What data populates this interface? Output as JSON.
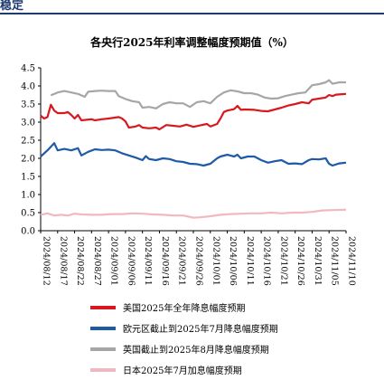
{
  "header": {
    "text": "稳定"
  },
  "chart_data": {
    "type": "line",
    "title": "各央行2025年利率调整幅度预期值（%）",
    "xlabel": "",
    "ylabel": "",
    "ylim": [
      0,
      4.5
    ],
    "yticks": [
      "0.0",
      "0.5",
      "1.0",
      "1.5",
      "2.0",
      "2.5",
      "3.0",
      "3.5",
      "4.0",
      "4.5"
    ],
    "grid": false,
    "legend_position": "bottom",
    "x_start": "2024/08/12",
    "x_end": "2024/11/10",
    "x_ticks": [
      "2024/08/12",
      "2024/08/17",
      "2024/08/22",
      "2024/08/27",
      "2024/09/01",
      "2024/09/06",
      "2024/09/11",
      "2024/09/16",
      "2024/09/21",
      "2024/09/26",
      "2024/10/01",
      "2024/10/06",
      "2024/10/11",
      "2024/10/16",
      "2024/10/21",
      "2024/10/26",
      "2024/10/31",
      "2024/11/05",
      "2024/11/10"
    ],
    "series": [
      {
        "name": "美国2025年全年降息幅度预期",
        "color": "#d7191f",
        "points": [
          [
            "2024/08/12",
            3.18
          ],
          [
            "2024/08/13",
            3.1
          ],
          [
            "2024/08/14",
            3.14
          ],
          [
            "2024/08/15",
            3.48
          ],
          [
            "2024/08/16",
            3.32
          ],
          [
            "2024/08/17",
            3.25
          ],
          [
            "2024/08/19",
            3.25
          ],
          [
            "2024/08/20",
            3.28
          ],
          [
            "2024/08/21",
            3.2
          ],
          [
            "2024/08/22",
            3.1
          ],
          [
            "2024/08/23",
            3.2
          ],
          [
            "2024/08/24",
            3.05
          ],
          [
            "2024/08/27",
            3.08
          ],
          [
            "2024/08/28",
            3.05
          ],
          [
            "2024/08/30",
            3.08
          ],
          [
            "2024/09/01",
            3.1
          ],
          [
            "2024/09/04",
            3.14
          ],
          [
            "2024/09/05",
            3.1
          ],
          [
            "2024/09/06",
            3.02
          ],
          [
            "2024/09/07",
            2.85
          ],
          [
            "2024/09/09",
            2.88
          ],
          [
            "2024/09/10",
            2.92
          ],
          [
            "2024/09/11",
            2.85
          ],
          [
            "2024/09/13",
            2.83
          ],
          [
            "2024/09/15",
            2.85
          ],
          [
            "2024/09/16",
            2.8
          ],
          [
            "2024/09/18",
            2.92
          ],
          [
            "2024/09/20",
            2.9
          ],
          [
            "2024/09/22",
            2.88
          ],
          [
            "2024/09/24",
            2.93
          ],
          [
            "2024/09/26",
            2.87
          ],
          [
            "2024/09/28",
            2.91
          ],
          [
            "2024/09/30",
            2.95
          ],
          [
            "2024/10/01",
            2.88
          ],
          [
            "2024/10/03",
            2.95
          ],
          [
            "2024/10/04",
            3.1
          ],
          [
            "2024/10/05",
            3.28
          ],
          [
            "2024/10/06",
            3.32
          ],
          [
            "2024/10/08",
            3.36
          ],
          [
            "2024/10/09",
            3.45
          ],
          [
            "2024/10/10",
            3.34
          ],
          [
            "2024/10/11",
            3.35
          ],
          [
            "2024/10/14",
            3.34
          ],
          [
            "2024/10/16",
            3.31
          ],
          [
            "2024/10/18",
            3.3
          ],
          [
            "2024/10/20",
            3.35
          ],
          [
            "2024/10/22",
            3.4
          ],
          [
            "2024/10/24",
            3.46
          ],
          [
            "2024/10/26",
            3.5
          ],
          [
            "2024/10/28",
            3.55
          ],
          [
            "2024/10/30",
            3.52
          ],
          [
            "2024/10/31",
            3.62
          ],
          [
            "2024/11/02",
            3.65
          ],
          [
            "2024/11/04",
            3.68
          ],
          [
            "2024/11/05",
            3.75
          ],
          [
            "2024/11/06",
            3.72
          ],
          [
            "2024/11/07",
            3.76
          ],
          [
            "2024/11/10",
            3.78
          ]
        ]
      },
      {
        "name": "欧元区截止到2025年7月降息幅度预期",
        "color": "#1f5aa6",
        "points": [
          [
            "2024/08/12",
            2.05
          ],
          [
            "2024/08/14",
            2.22
          ],
          [
            "2024/08/16",
            2.42
          ],
          [
            "2024/08/17",
            2.22
          ],
          [
            "2024/08/19",
            2.26
          ],
          [
            "2024/08/21",
            2.22
          ],
          [
            "2024/08/23",
            2.28
          ],
          [
            "2024/08/24",
            2.08
          ],
          [
            "2024/08/26",
            2.18
          ],
          [
            "2024/08/28",
            2.25
          ],
          [
            "2024/08/30",
            2.23
          ],
          [
            "2024/09/01",
            2.24
          ],
          [
            "2024/09/03",
            2.22
          ],
          [
            "2024/09/05",
            2.14
          ],
          [
            "2024/09/07",
            2.08
          ],
          [
            "2024/09/09",
            2.02
          ],
          [
            "2024/09/11",
            1.95
          ],
          [
            "2024/09/12",
            2.06
          ],
          [
            "2024/09/13",
            1.98
          ],
          [
            "2024/09/15",
            1.95
          ],
          [
            "2024/09/17",
            2.0
          ],
          [
            "2024/09/19",
            1.98
          ],
          [
            "2024/09/21",
            1.92
          ],
          [
            "2024/09/23",
            1.9
          ],
          [
            "2024/09/25",
            1.85
          ],
          [
            "2024/09/27",
            1.84
          ],
          [
            "2024/09/29",
            1.8
          ],
          [
            "2024/10/01",
            1.85
          ],
          [
            "2024/10/03",
            2.0
          ],
          [
            "2024/10/04",
            2.05
          ],
          [
            "2024/10/06",
            2.1
          ],
          [
            "2024/10/08",
            2.05
          ],
          [
            "2024/10/09",
            2.1
          ],
          [
            "2024/10/10",
            2.0
          ],
          [
            "2024/10/12",
            2.05
          ],
          [
            "2024/10/14",
            2.05
          ],
          [
            "2024/10/16",
            1.95
          ],
          [
            "2024/10/18",
            1.88
          ],
          [
            "2024/10/20",
            1.92
          ],
          [
            "2024/10/22",
            1.95
          ],
          [
            "2024/10/24",
            1.85
          ],
          [
            "2024/10/26",
            1.86
          ],
          [
            "2024/10/28",
            1.84
          ],
          [
            "2024/10/30",
            1.95
          ],
          [
            "2024/10/31",
            1.98
          ],
          [
            "2024/11/02",
            1.97
          ],
          [
            "2024/11/04",
            2.0
          ],
          [
            "2024/11/05",
            1.85
          ],
          [
            "2024/11/06",
            1.8
          ],
          [
            "2024/11/08",
            1.86
          ],
          [
            "2024/11/10",
            1.88
          ]
        ]
      },
      {
        "name": "英国截止到2025年8月降息幅度预期",
        "color": "#a6a6a6",
        "points": [
          [
            "2024/08/15",
            3.74
          ],
          [
            "2024/08/17",
            3.82
          ],
          [
            "2024/08/19",
            3.86
          ],
          [
            "2024/08/21",
            3.82
          ],
          [
            "2024/08/23",
            3.78
          ],
          [
            "2024/08/25",
            3.7
          ],
          [
            "2024/08/26",
            3.84
          ],
          [
            "2024/08/28",
            3.86
          ],
          [
            "2024/08/30",
            3.87
          ],
          [
            "2024/09/01",
            3.86
          ],
          [
            "2024/09/03",
            3.86
          ],
          [
            "2024/09/04",
            3.72
          ],
          [
            "2024/09/06",
            3.64
          ],
          [
            "2024/09/08",
            3.58
          ],
          [
            "2024/09/10",
            3.55
          ],
          [
            "2024/09/11",
            3.4
          ],
          [
            "2024/09/13",
            3.42
          ],
          [
            "2024/09/15",
            3.38
          ],
          [
            "2024/09/17",
            3.5
          ],
          [
            "2024/09/19",
            3.55
          ],
          [
            "2024/09/21",
            3.52
          ],
          [
            "2024/09/23",
            3.52
          ],
          [
            "2024/09/25",
            3.42
          ],
          [
            "2024/09/27",
            3.55
          ],
          [
            "2024/09/29",
            3.58
          ],
          [
            "2024/10/01",
            3.52
          ],
          [
            "2024/10/03",
            3.7
          ],
          [
            "2024/10/05",
            3.82
          ],
          [
            "2024/10/07",
            3.88
          ],
          [
            "2024/10/09",
            3.85
          ],
          [
            "2024/10/11",
            3.8
          ],
          [
            "2024/10/13",
            3.8
          ],
          [
            "2024/10/15",
            3.76
          ],
          [
            "2024/10/17",
            3.68
          ],
          [
            "2024/10/19",
            3.65
          ],
          [
            "2024/10/21",
            3.66
          ],
          [
            "2024/10/23",
            3.72
          ],
          [
            "2024/10/25",
            3.76
          ],
          [
            "2024/10/27",
            3.8
          ],
          [
            "2024/10/29",
            3.82
          ],
          [
            "2024/10/31",
            4.02
          ],
          [
            "2024/11/02",
            4.05
          ],
          [
            "2024/11/04",
            4.1
          ],
          [
            "2024/11/05",
            4.16
          ],
          [
            "2024/11/06",
            4.06
          ],
          [
            "2024/11/08",
            4.1
          ],
          [
            "2024/11/10",
            4.1
          ]
        ]
      },
      {
        "name": "日本2025年7月加息幅度预期",
        "color": "#f2b8bf",
        "points": [
          [
            "2024/08/12",
            0.44
          ],
          [
            "2024/08/14",
            0.48
          ],
          [
            "2024/08/16",
            0.42
          ],
          [
            "2024/08/18",
            0.44
          ],
          [
            "2024/08/20",
            0.42
          ],
          [
            "2024/08/22",
            0.47
          ],
          [
            "2024/08/24",
            0.45
          ],
          [
            "2024/08/27",
            0.44
          ],
          [
            "2024/08/30",
            0.44
          ],
          [
            "2024/09/02",
            0.46
          ],
          [
            "2024/09/05",
            0.46
          ],
          [
            "2024/09/08",
            0.48
          ],
          [
            "2024/09/11",
            0.47
          ],
          [
            "2024/09/14",
            0.45
          ],
          [
            "2024/09/17",
            0.44
          ],
          [
            "2024/09/20",
            0.42
          ],
          [
            "2024/09/23",
            0.42
          ],
          [
            "2024/09/26",
            0.36
          ],
          [
            "2024/09/28",
            0.37
          ],
          [
            "2024/10/01",
            0.4
          ],
          [
            "2024/10/04",
            0.44
          ],
          [
            "2024/10/07",
            0.46
          ],
          [
            "2024/10/10",
            0.47
          ],
          [
            "2024/10/13",
            0.48
          ],
          [
            "2024/10/16",
            0.48
          ],
          [
            "2024/10/19",
            0.5
          ],
          [
            "2024/10/22",
            0.48
          ],
          [
            "2024/10/25",
            0.5
          ],
          [
            "2024/10/28",
            0.5
          ],
          [
            "2024/10/31",
            0.52
          ],
          [
            "2024/11/03",
            0.56
          ],
          [
            "2024/11/06",
            0.57
          ],
          [
            "2024/11/10",
            0.58
          ]
        ]
      }
    ]
  }
}
